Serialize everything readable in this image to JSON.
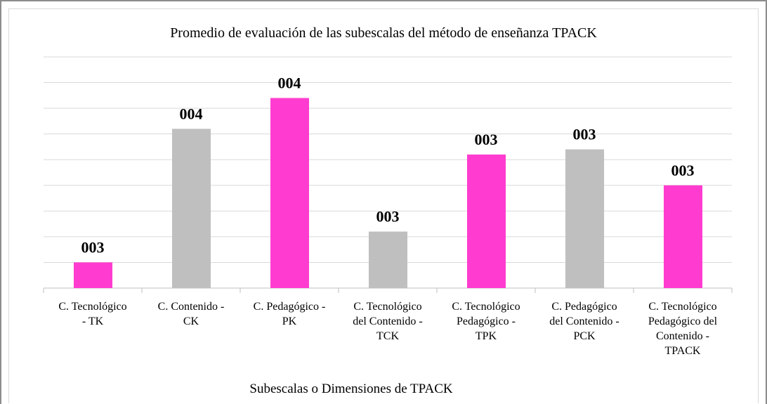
{
  "chart_data": {
    "type": "bar",
    "title": "Promedio de evaluación de las subescalas del método de enseñanza TPACK",
    "x_label": "Subescalas o Dimensiones de TPACK",
    "categories": [
      "C. Tecnológico - TK",
      "C. Contenido - CK",
      "C. Pedagógico - PK",
      "C. Tecnológico del Contenido - TCK",
      "C. Tecnológico Pedagógico - TPK",
      "C. Pedagógico del Contenido - PCK",
      "C. Tecnológico Pedagógico del Contenido - TPACK"
    ],
    "values": [
      3.25,
      3.51,
      3.57,
      3.31,
      3.46,
      3.47,
      3.4
    ],
    "value_labels": [
      "003",
      "004",
      "004",
      "003",
      "003",
      "003",
      "003"
    ],
    "colors": [
      "#ff3ccf",
      "#bfbfbf",
      "#ff3ccf",
      "#bfbfbf",
      "#ff3ccf",
      "#bfbfbf",
      "#ff3ccf"
    ],
    "ylim": [
      3.2,
      3.65
    ],
    "yticks": [
      3.2,
      3.25,
      3.3,
      3.35,
      3.4,
      3.45,
      3.5,
      3.55,
      3.6,
      3.65
    ],
    "grid": true
  }
}
